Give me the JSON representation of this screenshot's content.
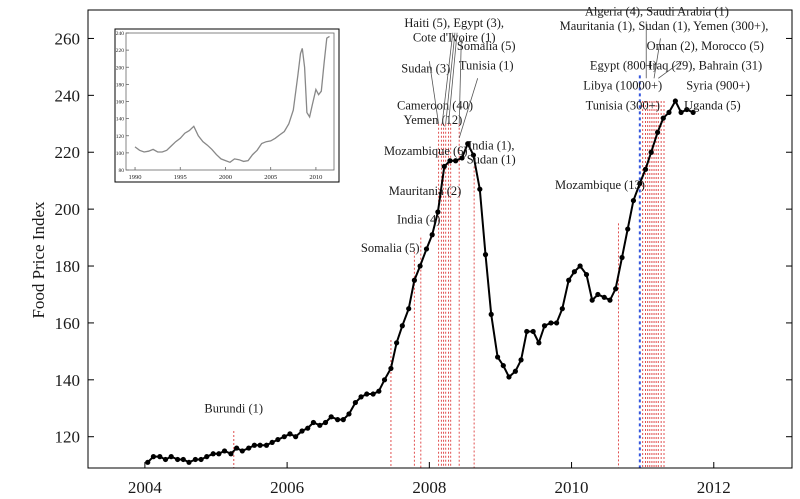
{
  "chart_data": [
    {
      "type": "line",
      "ylabel": "Food Price Index",
      "xlim": [
        2003.2,
        2013.1
      ],
      "ylim": [
        109,
        270
      ],
      "x_ticks": [
        2004,
        2006,
        2008,
        2010,
        2012
      ],
      "y_ticks": [
        120,
        140,
        160,
        180,
        200,
        220,
        240,
        260
      ],
      "x_tick_labels": [
        "2004",
        "2006",
        "2008",
        "2010",
        "2012"
      ],
      "y_tick_labels": [
        "120",
        "140",
        "160",
        "180",
        "200",
        "220",
        "240",
        "260"
      ],
      "grid": false,
      "line_color": "#000000",
      "event_line_color": "#e05050",
      "marker_line_color": "#3355dd",
      "series": [
        {
          "points": [
            [
              2004.04,
              111
            ],
            [
              2004.12,
              113
            ],
            [
              2004.21,
              113
            ],
            [
              2004.29,
              112
            ],
            [
              2004.37,
              113
            ],
            [
              2004.46,
              112
            ],
            [
              2004.54,
              112
            ],
            [
              2004.62,
              111
            ],
            [
              2004.71,
              112
            ],
            [
              2004.79,
              112
            ],
            [
              2004.87,
              113
            ],
            [
              2004.96,
              114
            ],
            [
              2005.04,
              114
            ],
            [
              2005.12,
              115
            ],
            [
              2005.21,
              114
            ],
            [
              2005.29,
              116
            ],
            [
              2005.37,
              115
            ],
            [
              2005.46,
              116
            ],
            [
              2005.54,
              117
            ],
            [
              2005.62,
              117
            ],
            [
              2005.71,
              117
            ],
            [
              2005.79,
              118
            ],
            [
              2005.87,
              119
            ],
            [
              2005.96,
              120
            ],
            [
              2006.04,
              121
            ],
            [
              2006.12,
              120
            ],
            [
              2006.21,
              122
            ],
            [
              2006.29,
              123
            ],
            [
              2006.37,
              125
            ],
            [
              2006.46,
              124
            ],
            [
              2006.54,
              125
            ],
            [
              2006.62,
              127
            ],
            [
              2006.71,
              126
            ],
            [
              2006.79,
              126
            ],
            [
              2006.87,
              128
            ],
            [
              2006.96,
              132
            ],
            [
              2007.04,
              134
            ],
            [
              2007.12,
              135
            ],
            [
              2007.21,
              135
            ],
            [
              2007.29,
              136
            ],
            [
              2007.37,
              140
            ],
            [
              2007.46,
              144
            ],
            [
              2007.54,
              153
            ],
            [
              2007.62,
              159
            ],
            [
              2007.71,
              165
            ],
            [
              2007.79,
              175
            ],
            [
              2007.87,
              180
            ],
            [
              2007.96,
              186
            ],
            [
              2008.04,
              191
            ],
            [
              2008.12,
              199
            ],
            [
              2008.21,
              215
            ],
            [
              2008.29,
              217
            ],
            [
              2008.37,
              217
            ],
            [
              2008.46,
              218
            ],
            [
              2008.54,
              223
            ],
            [
              2008.62,
              219
            ],
            [
              2008.71,
              207
            ],
            [
              2008.79,
              184
            ],
            [
              2008.87,
              163
            ],
            [
              2008.96,
              148
            ],
            [
              2009.04,
              145
            ],
            [
              2009.12,
              141
            ],
            [
              2009.21,
              143
            ],
            [
              2009.29,
              147
            ],
            [
              2009.37,
              157
            ],
            [
              2009.46,
              157
            ],
            [
              2009.54,
              153
            ],
            [
              2009.62,
              159
            ],
            [
              2009.71,
              160
            ],
            [
              2009.79,
              160
            ],
            [
              2009.87,
              165
            ],
            [
              2009.96,
              175
            ],
            [
              2010.04,
              178
            ],
            [
              2010.12,
              180
            ],
            [
              2010.21,
              177
            ],
            [
              2010.29,
              168
            ],
            [
              2010.37,
              170
            ],
            [
              2010.46,
              169
            ],
            [
              2010.54,
              168
            ],
            [
              2010.62,
              172
            ],
            [
              2010.71,
              183
            ],
            [
              2010.79,
              193
            ],
            [
              2010.87,
              203
            ],
            [
              2010.96,
              209
            ],
            [
              2011.04,
              214
            ],
            [
              2011.12,
              220
            ],
            [
              2011.21,
              227
            ],
            [
              2011.29,
              232
            ],
            [
              2011.37,
              234
            ],
            [
              2011.46,
              238
            ],
            [
              2011.54,
              234
            ],
            [
              2011.62,
              235
            ],
            [
              2011.71,
              234
            ]
          ]
        }
      ],
      "event_lines": [
        2005.25,
        2007.46,
        2007.79,
        2007.88,
        2008.13,
        2008.17,
        2008.2,
        2008.23,
        2008.27,
        2008.3,
        2008.42,
        2008.63,
        2010.66,
        2011.0,
        2011.04,
        2011.07,
        2011.1,
        2011.13,
        2011.16,
        2011.19,
        2011.22,
        2011.26,
        2011.3
      ],
      "marker_line": 2010.96,
      "annotations": [
        {
          "text": "Burundi (1)",
          "x": 2005.25,
          "y": 128.5
        },
        {
          "text": "Somalia (5)",
          "x": 2007.45,
          "y": 185
        },
        {
          "text": "India (4)",
          "x": 2007.85,
          "y": 195
        },
        {
          "text": "Mauritania (2)",
          "x": 2007.94,
          "y": 205
        },
        {
          "text": "Mozambique (6)",
          "x": 2007.95,
          "y": 219
        },
        {
          "text": "Yemen (12)",
          "x": 2008.05,
          "y": 230
        },
        {
          "text": "Cameroon (40)",
          "x": 2008.08,
          "y": 235
        },
        {
          "text": "Sudan (3)",
          "x": 2007.95,
          "y": 248
        },
        {
          "text": "Haiti (5), Egypt (3),",
          "x": 2008.35,
          "y": 264
        },
        {
          "text": "Cote d'Ivoire (1)",
          "x": 2008.35,
          "y": 259
        },
        {
          "text": "Somalia (5)",
          "x": 2008.8,
          "y": 256
        },
        {
          "text": "Tunisia (1)",
          "x": 2008.8,
          "y": 249
        },
        {
          "text": "India (1),",
          "x": 2008.87,
          "y": 221
        },
        {
          "text": "Sudan (1)",
          "x": 2008.87,
          "y": 216
        },
        {
          "text": "Mozambique (13)",
          "x": 2010.4,
          "y": 207
        },
        {
          "text": "Algeria (4), Saudi Arabia (1)",
          "x": 2011.2,
          "y": 268
        },
        {
          "text": "Mauritania (1), Sudan (1), Yemen (300+),",
          "x": 2011.3,
          "y": 263
        },
        {
          "text": "Oman (2), Morocco (5)",
          "x": 2011.88,
          "y": 256
        },
        {
          "text": "Egypt (800+)",
          "x": 2010.73,
          "y": 249
        },
        {
          "text": "Iraq (29), Bahrain (31)",
          "x": 2011.88,
          "y": 249
        },
        {
          "text": "Libya (10000+)",
          "x": 2010.72,
          "y": 242
        },
        {
          "text": "Syria (900+)",
          "x": 2012.06,
          "y": 242
        },
        {
          "text": "Tunisia (300+)",
          "x": 2010.72,
          "y": 235
        },
        {
          "text": "Uganda (5)",
          "x": 2011.98,
          "y": 235
        }
      ]
    },
    {
      "type": "line",
      "xlim": [
        1989,
        2012
      ],
      "ylim": [
        80,
        240
      ],
      "x_ticks": [
        1990,
        1995,
        2000,
        2005,
        2010
      ],
      "y_ticks": [
        80,
        100,
        120,
        140,
        160,
        180,
        200,
        220,
        240
      ],
      "x_tick_labels": [
        "1990",
        "1995",
        "2000",
        "2005",
        "2010"
      ],
      "y_tick_labels": [
        "80",
        "100",
        "120",
        "140",
        "160",
        "180",
        "200",
        "220",
        "240"
      ],
      "line_color": "#888888",
      "series": [
        {
          "points": [
            [
              1990,
              107
            ],
            [
              1990.5,
              103
            ],
            [
              1991,
              101
            ],
            [
              1991.5,
              102
            ],
            [
              1992,
              104
            ],
            [
              1992.5,
              101
            ],
            [
              1993,
              101
            ],
            [
              1993.5,
              103
            ],
            [
              1994,
              108
            ],
            [
              1994.5,
              113
            ],
            [
              1995,
              117
            ],
            [
              1995.5,
              123
            ],
            [
              1996,
              126
            ],
            [
              1996.5,
              131
            ],
            [
              1997,
              120
            ],
            [
              1997.5,
              113
            ],
            [
              1998,
              109
            ],
            [
              1998.5,
              104
            ],
            [
              1999,
              98
            ],
            [
              1999.5,
              93
            ],
            [
              2000,
              91
            ],
            [
              2000.5,
              89
            ],
            [
              2001,
              93
            ],
            [
              2001.5,
              92
            ],
            [
              2002,
              90
            ],
            [
              2002.5,
              91
            ],
            [
              2003,
              98
            ],
            [
              2003.5,
              103
            ],
            [
              2004,
              111
            ],
            [
              2004.5,
              113
            ],
            [
              2005,
              114
            ],
            [
              2005.5,
              117
            ],
            [
              2006,
              121
            ],
            [
              2006.5,
              125
            ],
            [
              2007,
              134
            ],
            [
              2007.5,
              150
            ],
            [
              2008,
              190
            ],
            [
              2008.3,
              216
            ],
            [
              2008.5,
              222
            ],
            [
              2008.75,
              200
            ],
            [
              2009,
              147
            ],
            [
              2009.3,
              142
            ],
            [
              2009.6,
              156
            ],
            [
              2010,
              174
            ],
            [
              2010.3,
              168
            ],
            [
              2010.6,
              172
            ],
            [
              2010.9,
              205
            ],
            [
              2011.2,
              234
            ],
            [
              2011.5,
              236
            ]
          ]
        }
      ]
    }
  ]
}
